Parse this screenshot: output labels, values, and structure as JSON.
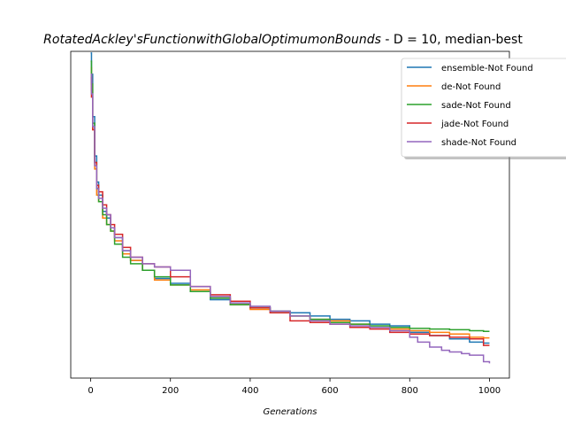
{
  "chart_data": {
    "type": "line",
    "title": {
      "italic_part": "RotatedAckley'sFunctionwithGlobalOptimumonBounds",
      "plain_part": " - D = 10, median-best"
    },
    "xlabel": "Generations",
    "ylabel": "",
    "xlim": [
      -50,
      1050
    ],
    "ylim": [
      0,
      1
    ],
    "x_ticks": [
      0,
      200,
      400,
      600,
      800,
      1000
    ],
    "y_ticks_shown": false,
    "grid": false,
    "legend_position": "top-right",
    "series": [
      {
        "name": "ensemble-Not Found",
        "color": "#1f77b4",
        "x": [
          0,
          2,
          5,
          10,
          15,
          20,
          30,
          40,
          50,
          60,
          80,
          100,
          130,
          160,
          200,
          250,
          300,
          350,
          400,
          450,
          500,
          550,
          600,
          650,
          700,
          750,
          800,
          850,
          900,
          950,
          985,
          1000
        ],
        "y": [
          0.995,
          0.93,
          0.8,
          0.68,
          0.6,
          0.56,
          0.51,
          0.49,
          0.46,
          0.43,
          0.39,
          0.36,
          0.33,
          0.305,
          0.29,
          0.265,
          0.24,
          0.225,
          0.215,
          0.205,
          0.2,
          0.19,
          0.18,
          0.175,
          0.165,
          0.16,
          0.14,
          0.13,
          0.12,
          0.11,
          0.107,
          0.107
        ]
      },
      {
        "name": "de-Not Found",
        "color": "#ff7f0e",
        "x": [
          0,
          2,
          5,
          10,
          15,
          20,
          30,
          40,
          50,
          60,
          80,
          100,
          130,
          160,
          200,
          250,
          300,
          350,
          400,
          450,
          500,
          550,
          600,
          650,
          700,
          750,
          800,
          850,
          900,
          950,
          985,
          1000
        ],
        "y": [
          0.95,
          0.88,
          0.76,
          0.64,
          0.56,
          0.54,
          0.49,
          0.47,
          0.45,
          0.42,
          0.38,
          0.36,
          0.33,
          0.3,
          0.285,
          0.27,
          0.245,
          0.225,
          0.21,
          0.2,
          0.19,
          0.18,
          0.175,
          0.165,
          0.155,
          0.15,
          0.145,
          0.14,
          0.135,
          0.125,
          0.123,
          0.123
        ]
      },
      {
        "name": "sade-Not Found",
        "color": "#2ca02c",
        "x": [
          0,
          2,
          5,
          10,
          15,
          20,
          30,
          40,
          50,
          60,
          80,
          100,
          130,
          160,
          200,
          250,
          300,
          350,
          400,
          450,
          500,
          550,
          600,
          650,
          700,
          750,
          800,
          850,
          900,
          950,
          985,
          1000
        ],
        "y": [
          0.97,
          0.9,
          0.78,
          0.66,
          0.58,
          0.54,
          0.5,
          0.47,
          0.45,
          0.41,
          0.37,
          0.35,
          0.33,
          0.31,
          0.285,
          0.265,
          0.245,
          0.225,
          0.215,
          0.205,
          0.19,
          0.18,
          0.17,
          0.165,
          0.16,
          0.155,
          0.152,
          0.15,
          0.148,
          0.145,
          0.143,
          0.143
        ]
      },
      {
        "name": "jade-Not Found",
        "color": "#d62728",
        "x": [
          0,
          2,
          5,
          10,
          15,
          20,
          30,
          40,
          50,
          60,
          80,
          100,
          130,
          160,
          200,
          250,
          300,
          350,
          400,
          450,
          500,
          550,
          600,
          650,
          700,
          750,
          800,
          850,
          900,
          950,
          985,
          1000
        ],
        "y": [
          0.92,
          0.86,
          0.76,
          0.66,
          0.59,
          0.57,
          0.53,
          0.5,
          0.47,
          0.44,
          0.4,
          0.37,
          0.35,
          0.34,
          0.31,
          0.28,
          0.255,
          0.235,
          0.215,
          0.2,
          0.175,
          0.17,
          0.165,
          0.155,
          0.15,
          0.14,
          0.135,
          0.13,
          0.125,
          0.12,
          0.1,
          0.1
        ]
      },
      {
        "name": "shade-Not Found",
        "color": "#9467bd",
        "x": [
          0,
          2,
          5,
          10,
          15,
          20,
          30,
          40,
          50,
          60,
          80,
          100,
          130,
          160,
          200,
          250,
          300,
          350,
          400,
          450,
          500,
          550,
          600,
          650,
          700,
          750,
          800,
          820,
          850,
          880,
          900,
          930,
          950,
          970,
          985,
          1000
        ],
        "y": [
          0.93,
          0.87,
          0.77,
          0.65,
          0.58,
          0.55,
          0.52,
          0.5,
          0.46,
          0.43,
          0.39,
          0.37,
          0.35,
          0.34,
          0.33,
          0.28,
          0.25,
          0.23,
          0.22,
          0.205,
          0.19,
          0.175,
          0.165,
          0.16,
          0.155,
          0.145,
          0.125,
          0.11,
          0.095,
          0.085,
          0.08,
          0.075,
          0.07,
          0.07,
          0.05,
          0.045
        ]
      }
    ]
  }
}
